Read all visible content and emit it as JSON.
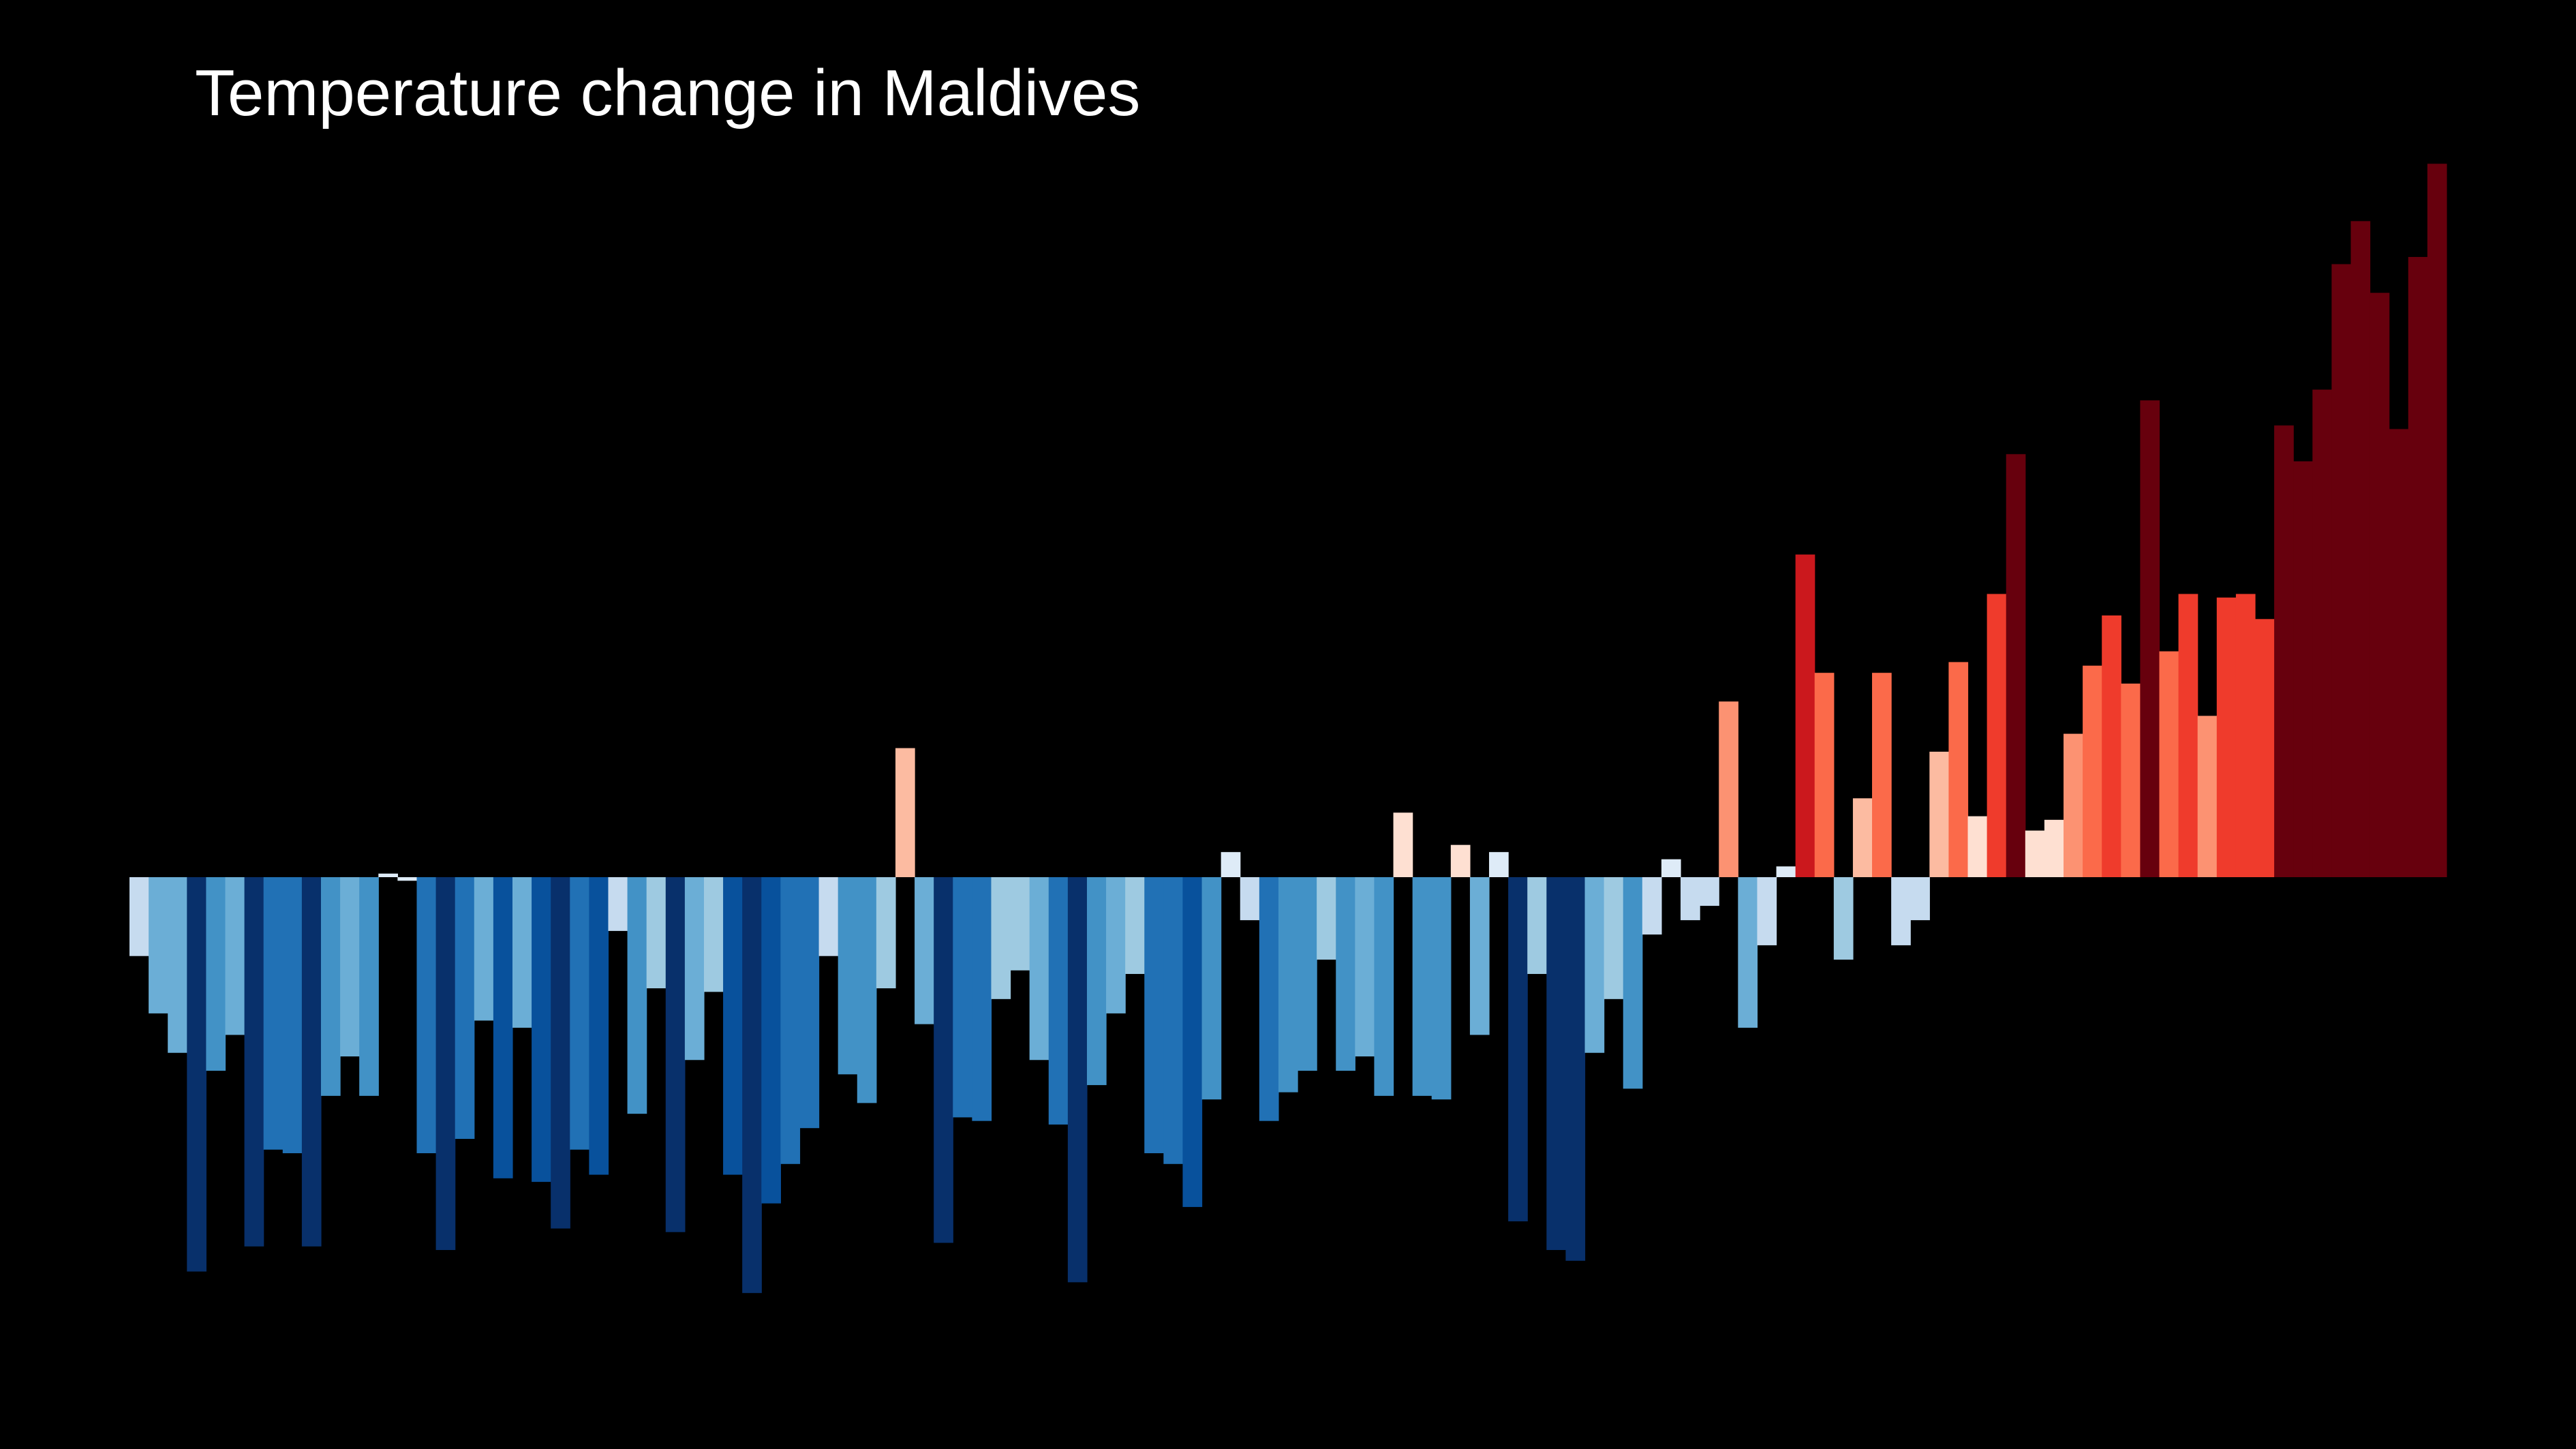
{
  "chart_data": {
    "type": "bar",
    "title": "Temperature change in Maldives",
    "xlabel": "",
    "ylabel": "",
    "grid": false,
    "legend": "none",
    "background": "#000000",
    "title_color": "#ffffff",
    "ylim": [
      -1.15,
      2.0
    ],
    "color_scale": [
      "#08306b",
      "#08519c",
      "#2171b5",
      "#4292c6",
      "#6baed6",
      "#9ecae1",
      "#c6dbef",
      "#deebf7",
      "#fee0d2",
      "#fcbba1",
      "#fc9272",
      "#fb6a4a",
      "#ef3b2c",
      "#cb181d",
      "#67000d"
    ],
    "values": [
      -0.22,
      -0.38,
      -0.49,
      -1.1,
      -0.54,
      -0.44,
      -1.03,
      -0.76,
      -0.77,
      -1.03,
      -0.61,
      -0.5,
      -0.61,
      0.01,
      -0.01,
      -0.77,
      -1.04,
      -0.73,
      -0.4,
      -0.84,
      -0.42,
      -0.85,
      -0.98,
      -0.76,
      -0.83,
      -0.15,
      -0.66,
      -0.31,
      -0.99,
      -0.51,
      -0.32,
      -0.83,
      -1.16,
      -0.91,
      -0.8,
      -0.7,
      -0.22,
      -0.55,
      -0.63,
      -0.31,
      0.36,
      -0.41,
      -1.02,
      -0.67,
      -0.68,
      -0.34,
      -0.26,
      -0.51,
      -0.69,
      -1.13,
      -0.58,
      -0.38,
      -0.27,
      -0.77,
      -0.8,
      -0.92,
      -0.62,
      0.07,
      -0.12,
      -0.68,
      -0.6,
      -0.54,
      -0.23,
      -0.54,
      -0.5,
      -0.61,
      0.18,
      -0.61,
      -0.62,
      0.09,
      -0.44,
      0.07,
      -0.96,
      -0.27,
      -1.04,
      -1.07,
      -0.49,
      -0.34,
      -0.59,
      -0.16,
      0.05,
      -0.12,
      -0.08,
      0.49,
      -0.42,
      -0.19,
      0.03,
      0.9,
      0.57,
      -0.23,
      0.22,
      0.57,
      -0.19,
      -0.12,
      0.35,
      0.6,
      0.17,
      0.79,
      1.18,
      0.13,
      0.16,
      0.4,
      0.59,
      0.73,
      0.54,
      1.33,
      0.63,
      0.79,
      0.45,
      0.78,
      0.79,
      0.72,
      1.26,
      1.16,
      1.36,
      1.71,
      1.83,
      1.63,
      1.25,
      1.73,
      1.99
    ]
  }
}
